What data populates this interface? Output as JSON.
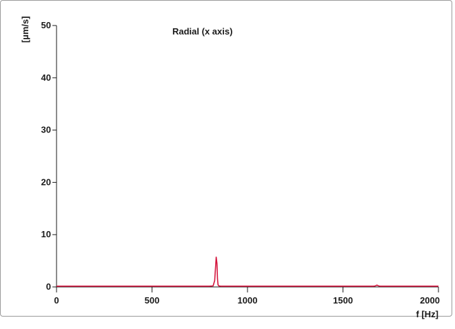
{
  "chart_data": {
    "type": "line",
    "title": "Radial (x axis)",
    "xlabel": "f [Hz]",
    "ylabel": "[µm/s]",
    "xlim": [
      0,
      2000
    ],
    "ylim": [
      0,
      50
    ],
    "x_ticks": [
      0,
      500,
      1000,
      1500,
      2000
    ],
    "y_ticks": [
      0,
      10,
      20,
      30,
      40,
      50
    ],
    "x_tick_labels": [
      "0",
      "500",
      "1000",
      "1500",
      "2000"
    ],
    "y_tick_labels": [
      "0",
      "10",
      "20",
      "30",
      "40",
      "50"
    ],
    "grid": false,
    "series": [
      {
        "color": "#d4143c",
        "x": [
          0,
          500,
          800,
          820,
          828,
          832,
          836,
          840,
          843,
          846,
          850,
          860,
          900,
          1200,
          1500,
          1660,
          1670,
          1678,
          1686,
          1695,
          1800,
          2000
        ],
        "y": [
          0.15,
          0.15,
          0.15,
          0.2,
          1.2,
          3.5,
          5.7,
          4.5,
          1.5,
          0.4,
          0.2,
          0.15,
          0.15,
          0.15,
          0.15,
          0.15,
          0.2,
          0.35,
          0.2,
          0.15,
          0.15,
          0.15
        ]
      }
    ]
  }
}
